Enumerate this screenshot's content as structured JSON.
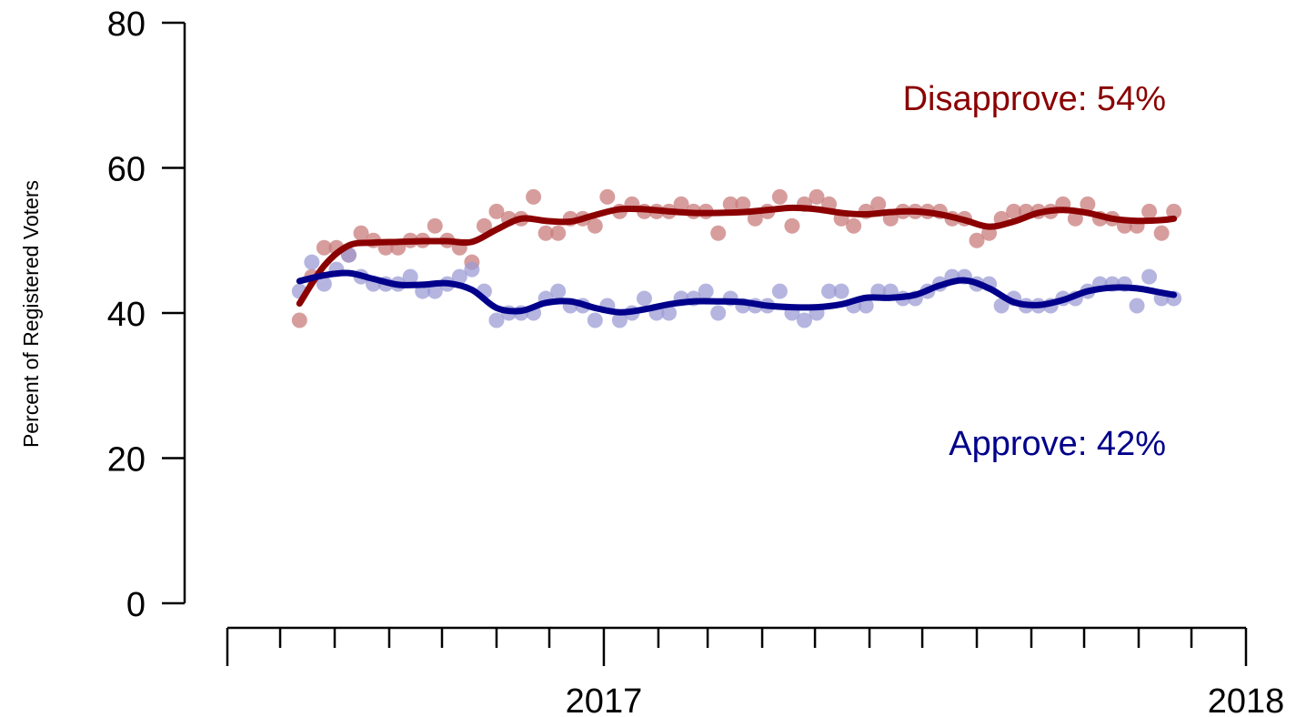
{
  "chart_data": {
    "type": "scatter",
    "title": "",
    "xlabel": "",
    "ylabel": "Percent of Registered Voters",
    "ylim": [
      0,
      80
    ],
    "xlim": [
      "2016-06-01",
      "2018-01-01"
    ],
    "y_ticks": [
      "0",
      "20",
      "40",
      "60",
      "80"
    ],
    "x_tick_labels": [
      {
        "date": "2017-01-01",
        "label": "2017"
      },
      {
        "date": "2018-01-01",
        "label": "2018"
      }
    ],
    "x_minor_ticks": [
      "2016-06-01",
      "2016-07-01",
      "2016-08-01",
      "2016-09-01",
      "2016-10-01",
      "2016-11-01",
      "2016-12-01",
      "2017-01-01",
      "2017-02-01",
      "2017-03-01",
      "2017-04-01",
      "2017-05-01",
      "2017-06-01",
      "2017-07-01",
      "2017-08-01",
      "2017-09-01",
      "2017-10-01",
      "2017-11-01",
      "2017-12-01",
      "2018-01-01"
    ],
    "grid": false,
    "annotations": [
      {
        "series": "Disapprove",
        "text": "Disapprove: 54%",
        "color": "#8B0000"
      },
      {
        "series": "Approve",
        "text": "Approve: 42%",
        "color": "#00008B"
      }
    ],
    "series": [
      {
        "name": "Disapprove",
        "color": "#8B0000",
        "point_color": "#C97C7C",
        "points": [
          [
            "2016-07-12",
            39
          ],
          [
            "2016-07-19",
            45
          ],
          [
            "2016-07-26",
            49
          ],
          [
            "2016-08-02",
            49
          ],
          [
            "2016-08-09",
            48
          ],
          [
            "2016-08-16",
            51
          ],
          [
            "2016-08-23",
            50
          ],
          [
            "2016-08-30",
            49
          ],
          [
            "2016-09-06",
            49
          ],
          [
            "2016-09-13",
            50
          ],
          [
            "2016-09-20",
            50
          ],
          [
            "2016-09-27",
            52
          ],
          [
            "2016-10-04",
            50
          ],
          [
            "2016-10-11",
            49
          ],
          [
            "2016-10-18",
            47
          ],
          [
            "2016-10-25",
            52
          ],
          [
            "2016-11-01",
            54
          ],
          [
            "2016-11-08",
            53
          ],
          [
            "2016-11-15",
            53
          ],
          [
            "2016-11-22",
            56
          ],
          [
            "2016-11-29",
            51
          ],
          [
            "2016-12-06",
            51
          ],
          [
            "2016-12-13",
            53
          ],
          [
            "2016-12-20",
            53
          ],
          [
            "2016-12-27",
            52
          ],
          [
            "2017-01-03",
            56
          ],
          [
            "2017-01-10",
            54
          ],
          [
            "2017-01-17",
            55
          ],
          [
            "2017-01-24",
            54
          ],
          [
            "2017-01-31",
            54
          ],
          [
            "2017-02-07",
            54
          ],
          [
            "2017-02-14",
            55
          ],
          [
            "2017-02-21",
            54
          ],
          [
            "2017-02-28",
            54
          ],
          [
            "2017-03-07",
            51
          ],
          [
            "2017-03-14",
            55
          ],
          [
            "2017-03-21",
            55
          ],
          [
            "2017-03-28",
            53
          ],
          [
            "2017-04-04",
            54
          ],
          [
            "2017-04-11",
            56
          ],
          [
            "2017-04-18",
            52
          ],
          [
            "2017-04-25",
            55
          ],
          [
            "2017-05-02",
            56
          ],
          [
            "2017-05-09",
            55
          ],
          [
            "2017-05-16",
            53
          ],
          [
            "2017-05-23",
            52
          ],
          [
            "2017-05-30",
            54
          ],
          [
            "2017-06-06",
            55
          ],
          [
            "2017-06-13",
            53
          ],
          [
            "2017-06-20",
            54
          ],
          [
            "2017-06-27",
            54
          ],
          [
            "2017-07-04",
            54
          ],
          [
            "2017-07-11",
            54
          ],
          [
            "2017-07-18",
            53
          ],
          [
            "2017-07-25",
            53
          ],
          [
            "2017-08-01",
            50
          ],
          [
            "2017-08-08",
            51
          ],
          [
            "2017-08-15",
            53
          ],
          [
            "2017-08-22",
            54
          ],
          [
            "2017-08-29",
            54
          ],
          [
            "2017-09-05",
            54
          ],
          [
            "2017-09-12",
            54
          ],
          [
            "2017-09-19",
            55
          ],
          [
            "2017-09-26",
            53
          ],
          [
            "2017-10-03",
            55
          ],
          [
            "2017-10-10",
            53
          ],
          [
            "2017-10-17",
            53
          ],
          [
            "2017-10-24",
            52
          ],
          [
            "2017-10-31",
            52
          ],
          [
            "2017-11-07",
            54
          ],
          [
            "2017-11-14",
            51
          ],
          [
            "2017-11-21",
            54
          ]
        ],
        "trend": [
          [
            "2016-07-12",
            41.3
          ],
          [
            "2016-07-26",
            46.5
          ],
          [
            "2016-08-09",
            49.3
          ],
          [
            "2016-08-23",
            49.7
          ],
          [
            "2016-09-06",
            49.8
          ],
          [
            "2016-09-20",
            49.9
          ],
          [
            "2016-10-04",
            49.9
          ],
          [
            "2016-10-18",
            49.8
          ],
          [
            "2016-11-01",
            51.5
          ],
          [
            "2016-11-15",
            53.0
          ],
          [
            "2016-11-29",
            52.7
          ],
          [
            "2016-12-13",
            52.6
          ],
          [
            "2016-12-27",
            53.5
          ],
          [
            "2017-01-10",
            54.3
          ],
          [
            "2017-01-24",
            54.3
          ],
          [
            "2017-02-07",
            54.0
          ],
          [
            "2017-02-21",
            53.8
          ],
          [
            "2017-03-07",
            53.8
          ],
          [
            "2017-03-21",
            53.9
          ],
          [
            "2017-04-04",
            54.2
          ],
          [
            "2017-04-18",
            54.5
          ],
          [
            "2017-05-02",
            54.3
          ],
          [
            "2017-05-16",
            53.8
          ],
          [
            "2017-05-30",
            53.6
          ],
          [
            "2017-06-13",
            53.9
          ],
          [
            "2017-06-27",
            54.0
          ],
          [
            "2017-07-11",
            53.6
          ],
          [
            "2017-07-25",
            52.8
          ],
          [
            "2017-08-08",
            51.9
          ],
          [
            "2017-08-22",
            52.6
          ],
          [
            "2017-09-05",
            53.8
          ],
          [
            "2017-09-19",
            54.2
          ],
          [
            "2017-10-03",
            53.8
          ],
          [
            "2017-10-17",
            53.0
          ],
          [
            "2017-10-31",
            52.7
          ],
          [
            "2017-11-14",
            52.8
          ],
          [
            "2017-11-21",
            53.0
          ]
        ]
      },
      {
        "name": "Approve",
        "color": "#00008B",
        "point_color": "#9C9CD6",
        "points": [
          [
            "2016-07-12",
            43
          ],
          [
            "2016-07-19",
            47
          ],
          [
            "2016-07-26",
            44
          ],
          [
            "2016-08-02",
            46
          ],
          [
            "2016-08-09",
            48
          ],
          [
            "2016-08-16",
            45
          ],
          [
            "2016-08-23",
            44
          ],
          [
            "2016-08-30",
            44
          ],
          [
            "2016-09-06",
            44
          ],
          [
            "2016-09-13",
            45
          ],
          [
            "2016-09-20",
            43
          ],
          [
            "2016-09-27",
            43
          ],
          [
            "2016-10-04",
            44
          ],
          [
            "2016-10-11",
            45
          ],
          [
            "2016-10-18",
            46
          ],
          [
            "2016-10-25",
            43
          ],
          [
            "2016-11-01",
            39
          ],
          [
            "2016-11-08",
            40
          ],
          [
            "2016-11-15",
            40
          ],
          [
            "2016-11-22",
            40
          ],
          [
            "2016-11-29",
            42
          ],
          [
            "2016-12-06",
            43
          ],
          [
            "2016-12-13",
            41
          ],
          [
            "2016-12-20",
            41
          ],
          [
            "2016-12-27",
            39
          ],
          [
            "2017-01-03",
            41
          ],
          [
            "2017-01-10",
            39
          ],
          [
            "2017-01-17",
            40
          ],
          [
            "2017-01-24",
            42
          ],
          [
            "2017-01-31",
            40
          ],
          [
            "2017-02-07",
            40
          ],
          [
            "2017-02-14",
            42
          ],
          [
            "2017-02-21",
            42
          ],
          [
            "2017-02-28",
            43
          ],
          [
            "2017-03-07",
            40
          ],
          [
            "2017-03-14",
            42
          ],
          [
            "2017-03-21",
            41
          ],
          [
            "2017-03-28",
            41
          ],
          [
            "2017-04-04",
            41
          ],
          [
            "2017-04-11",
            43
          ],
          [
            "2017-04-18",
            40
          ],
          [
            "2017-04-25",
            39
          ],
          [
            "2017-05-02",
            40
          ],
          [
            "2017-05-09",
            43
          ],
          [
            "2017-05-16",
            43
          ],
          [
            "2017-05-23",
            41
          ],
          [
            "2017-05-30",
            41
          ],
          [
            "2017-06-06",
            43
          ],
          [
            "2017-06-13",
            43
          ],
          [
            "2017-06-20",
            42
          ],
          [
            "2017-06-27",
            42
          ],
          [
            "2017-07-04",
            43
          ],
          [
            "2017-07-11",
            44
          ],
          [
            "2017-07-18",
            45
          ],
          [
            "2017-07-25",
            45
          ],
          [
            "2017-08-01",
            44
          ],
          [
            "2017-08-08",
            44
          ],
          [
            "2017-08-15",
            41
          ],
          [
            "2017-08-22",
            42
          ],
          [
            "2017-08-29",
            41
          ],
          [
            "2017-09-05",
            41
          ],
          [
            "2017-09-12",
            41
          ],
          [
            "2017-09-19",
            42
          ],
          [
            "2017-09-26",
            42
          ],
          [
            "2017-10-03",
            43
          ],
          [
            "2017-10-10",
            44
          ],
          [
            "2017-10-17",
            44
          ],
          [
            "2017-10-24",
            44
          ],
          [
            "2017-10-31",
            41
          ],
          [
            "2017-11-07",
            45
          ],
          [
            "2017-11-14",
            42
          ],
          [
            "2017-11-21",
            42
          ]
        ],
        "trend": [
          [
            "2016-07-12",
            44.4
          ],
          [
            "2016-07-26",
            45.2
          ],
          [
            "2016-08-09",
            45.5
          ],
          [
            "2016-08-23",
            44.7
          ],
          [
            "2016-09-06",
            43.9
          ],
          [
            "2016-09-20",
            43.9
          ],
          [
            "2016-10-04",
            44.1
          ],
          [
            "2016-10-18",
            43.2
          ],
          [
            "2016-11-01",
            40.7
          ],
          [
            "2016-11-15",
            40.3
          ],
          [
            "2016-11-29",
            41.4
          ],
          [
            "2016-12-13",
            41.6
          ],
          [
            "2016-12-27",
            40.7
          ],
          [
            "2017-01-10",
            40.1
          ],
          [
            "2017-01-24",
            40.5
          ],
          [
            "2017-02-07",
            41.2
          ],
          [
            "2017-02-21",
            41.6
          ],
          [
            "2017-03-07",
            41.6
          ],
          [
            "2017-03-21",
            41.5
          ],
          [
            "2017-04-04",
            41.0
          ],
          [
            "2017-04-18",
            40.8
          ],
          [
            "2017-05-02",
            40.8
          ],
          [
            "2017-05-16",
            41.2
          ],
          [
            "2017-05-30",
            42.1
          ],
          [
            "2017-06-13",
            42.1
          ],
          [
            "2017-06-27",
            42.5
          ],
          [
            "2017-07-11",
            43.8
          ],
          [
            "2017-07-25",
            44.5
          ],
          [
            "2017-08-08",
            43.4
          ],
          [
            "2017-08-22",
            41.5
          ],
          [
            "2017-09-05",
            41.1
          ],
          [
            "2017-09-19",
            41.8
          ],
          [
            "2017-10-03",
            43.0
          ],
          [
            "2017-10-17",
            43.5
          ],
          [
            "2017-10-31",
            43.4
          ],
          [
            "2017-11-14",
            42.8
          ],
          [
            "2017-11-21",
            42.5
          ]
        ]
      }
    ]
  }
}
